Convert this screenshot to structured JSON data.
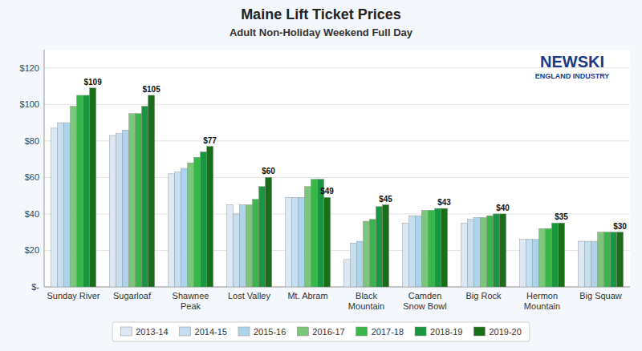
{
  "chart_data": {
    "type": "bar",
    "title": "Maine Lift Ticket Prices",
    "subtitle": "Adult Non-Holiday Weekend Full Day",
    "annotations": [
      "NEWSKI",
      "ENGLAND INDUSTRY"
    ],
    "categories": [
      "Sunday River",
      "Sugarloaf",
      "Shawnee\nPeak",
      "Lost Valley",
      "Mt. Abram",
      "Black\nMountain",
      "Camden\nSnow Bowl",
      "Big Rock",
      "Hermon\nMountain",
      "Big Squaw"
    ],
    "series": [
      {
        "name": "2013-14",
        "color": "#dce9f5",
        "values": [
          87,
          83,
          62,
          45,
          49,
          15,
          35,
          35,
          26,
          25
        ]
      },
      {
        "name": "2014-15",
        "color": "#c5dff0",
        "values": [
          90,
          84,
          63,
          40,
          49,
          24,
          39,
          37,
          26,
          25
        ]
      },
      {
        "name": "2015-16",
        "color": "#aed4eb",
        "values": [
          90,
          86,
          65,
          45,
          49,
          25,
          39,
          38,
          26,
          25
        ]
      },
      {
        "name": "2016-17",
        "color": "#7bc67a",
        "values": [
          99,
          95,
          68,
          45,
          55,
          36,
          42,
          38,
          32,
          30
        ]
      },
      {
        "name": "2017-18",
        "color": "#3ab54a",
        "values": [
          105,
          95,
          71,
          48,
          59,
          37,
          42,
          39,
          32,
          30
        ]
      },
      {
        "name": "2018-19",
        "color": "#1a9640",
        "values": [
          105,
          99,
          74,
          55,
          59,
          44,
          43,
          40,
          35,
          30
        ]
      },
      {
        "name": "2019-20",
        "color": "#1a6e1a",
        "values": [
          109,
          105,
          77,
          60,
          49,
          45,
          43,
          40,
          35,
          30
        ],
        "value_labels": [
          "$109",
          "$105",
          "$77",
          "$60",
          "$49",
          "$45",
          "$43",
          "$40",
          "$35",
          "$30"
        ]
      }
    ],
    "ylim": [
      0,
      130
    ],
    "yticks": [
      {
        "value": 0,
        "label": "$-"
      },
      {
        "value": 20,
        "label": "$20"
      },
      {
        "value": 40,
        "label": "$40"
      },
      {
        "value": 60,
        "label": "$60"
      },
      {
        "value": 80,
        "label": "$80"
      },
      {
        "value": 100,
        "label": "$100"
      },
      {
        "value": 120,
        "label": "$120"
      }
    ],
    "grid": true,
    "legend": "bottom"
  }
}
